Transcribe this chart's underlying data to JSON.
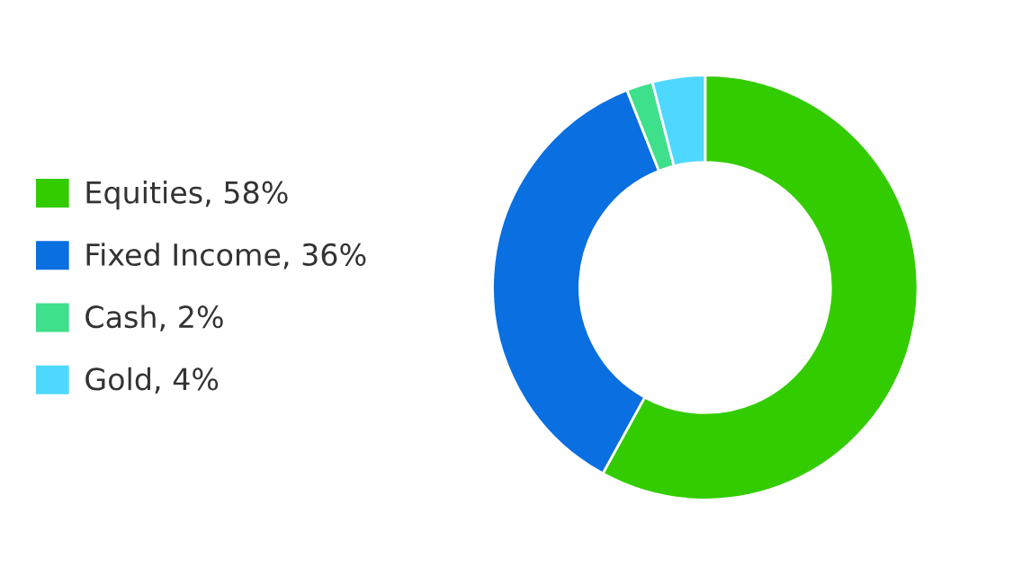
{
  "chart_data": {
    "type": "donut",
    "categories": [
      "Equities, 58%",
      "Fixed Income, 36%",
      "Cash, 2%",
      "Gold, 4%"
    ],
    "values": [
      58,
      36,
      2,
      4
    ],
    "colors": [
      "#33cc00",
      "#0a6fe0",
      "#3ee08c",
      "#4fd8ff"
    ],
    "legend": "left"
  }
}
